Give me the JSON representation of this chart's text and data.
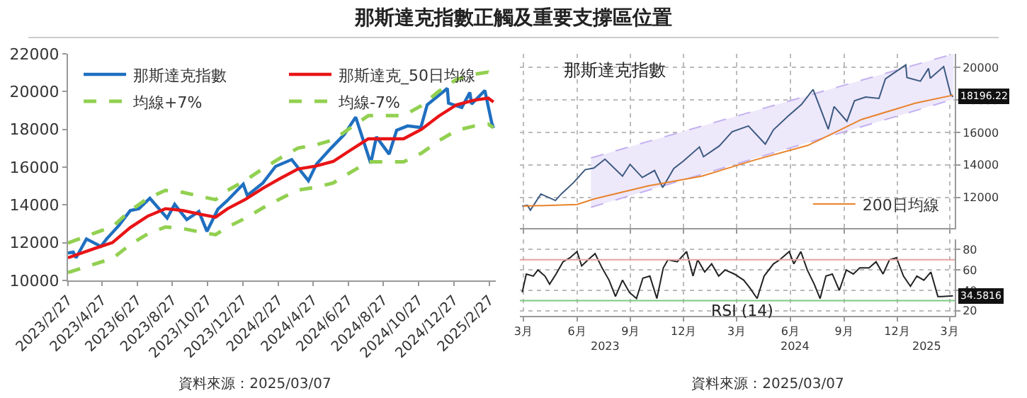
{
  "chart_data": [
    {
      "type": "line",
      "title": "那斯達克指數正觸及重要支撐區位置",
      "xlim": [
        "2023-02-27",
        "2025-03-10"
      ],
      "ylim": [
        10000,
        22000
      ],
      "yticks": [
        10000,
        12000,
        14000,
        16000,
        18000,
        20000,
        22000
      ],
      "xticks": [
        {
          "value": "2023-02-27",
          "label": "2023/2/27"
        },
        {
          "value": "2023-04-27",
          "label": "2023/4/27"
        },
        {
          "value": "2023-06-27",
          "label": "2023/6/27"
        },
        {
          "value": "2023-08-27",
          "label": "2023/8/27"
        },
        {
          "value": "2023-10-27",
          "label": "2023/10/27"
        },
        {
          "value": "2023-12-27",
          "label": "2023/12/27"
        },
        {
          "value": "2024-02-27",
          "label": "2024/2/27"
        },
        {
          "value": "2024-04-27",
          "label": "2024/4/27"
        },
        {
          "value": "2024-06-27",
          "label": "2024/6/27"
        },
        {
          "value": "2024-08-27",
          "label": "2024/8/27"
        },
        {
          "value": "2024-10-27",
          "label": "2024/10/27"
        },
        {
          "value": "2024-12-27",
          "label": "2024/12/27"
        },
        {
          "value": "2025-02-27",
          "label": "2025/2/27"
        }
      ],
      "grid": false,
      "legend": "top",
      "annotations": [
        "資料來源：2025/03/07"
      ],
      "series": [
        {
          "name": "那斯達克指數",
          "color": "#1f6fc0",
          "line_style": "solid",
          "x": [
            "2023-02-27",
            "2023-03-08",
            "2023-03-13",
            "2023-03-31",
            "2023-04-25",
            "2023-05-05",
            "2023-05-26",
            "2023-06-15",
            "2023-06-30",
            "2023-07-19",
            "2023-08-18",
            "2023-08-31",
            "2023-09-21",
            "2023-10-12",
            "2023-10-26",
            "2023-11-14",
            "2023-11-30",
            "2023-12-28",
            "2024-01-04",
            "2024-01-31",
            "2024-02-22",
            "2024-03-21",
            "2024-04-19",
            "2024-05-03",
            "2024-05-28",
            "2024-06-20",
            "2024-07-10",
            "2024-07-24",
            "2024-08-05",
            "2024-08-15",
            "2024-09-06",
            "2024-09-19",
            "2024-10-08",
            "2024-10-31",
            "2024-11-11",
            "2024-12-16",
            "2024-12-18",
            "2025-01-10",
            "2025-01-24",
            "2025-01-27",
            "2025-02-19",
            "2025-03-03",
            "2025-03-06"
          ],
          "values": [
            11450,
            11500,
            11200,
            12200,
            11800,
            12200,
            12900,
            13700,
            13800,
            14350,
            13300,
            14030,
            13220,
            13650,
            12600,
            13770,
            14220,
            15100,
            14500,
            15160,
            16040,
            16400,
            15280,
            16160,
            17000,
            17720,
            18650,
            17340,
            16200,
            17600,
            16690,
            17950,
            18180,
            18100,
            19300,
            20170,
            19390,
            19160,
            19950,
            19340,
            20060,
            18350,
            18070
          ]
        },
        {
          "name": "那斯達克_50日均線",
          "color": "#e81416",
          "line_style": "solid",
          "x": [
            "2023-02-27",
            "2023-04-15",
            "2023-05-15",
            "2023-06-15",
            "2023-07-15",
            "2023-08-15",
            "2023-09-15",
            "2023-10-15",
            "2023-11-10",
            "2023-12-01",
            "2024-01-01",
            "2024-02-01",
            "2024-03-01",
            "2024-04-01",
            "2024-05-01",
            "2024-06-01",
            "2024-07-01",
            "2024-08-01",
            "2024-09-01",
            "2024-10-01",
            "2024-11-01",
            "2024-12-01",
            "2025-01-01",
            "2025-02-01",
            "2025-02-25",
            "2025-03-06"
          ],
          "values": [
            11200,
            11700,
            12000,
            12800,
            13400,
            13800,
            13700,
            13500,
            13350,
            13800,
            14300,
            14900,
            15400,
            15900,
            16050,
            16300,
            16900,
            17500,
            17500,
            17500,
            18000,
            18700,
            19300,
            19550,
            19650,
            19450
          ]
        },
        {
          "name": "均線+7%",
          "color": "#92d050",
          "line_style": "dashed",
          "x": [
            "2023-02-27",
            "2023-04-15",
            "2023-05-15",
            "2023-06-15",
            "2023-07-15",
            "2023-08-15",
            "2023-09-15",
            "2023-10-15",
            "2023-11-10",
            "2023-12-01",
            "2024-01-01",
            "2024-02-01",
            "2024-03-01",
            "2024-04-01",
            "2024-05-01",
            "2024-06-01",
            "2024-07-01",
            "2024-08-01",
            "2024-09-01",
            "2024-10-01",
            "2024-11-01",
            "2024-12-01",
            "2025-01-01",
            "2025-02-01",
            "2025-02-25",
            "2025-03-06"
          ],
          "values": [
            11980,
            12520,
            12840,
            13700,
            14340,
            14770,
            14660,
            14450,
            14280,
            14770,
            15300,
            15940,
            16480,
            17010,
            17170,
            17440,
            18080,
            18730,
            18730,
            18730,
            19260,
            20010,
            20650,
            20920,
            21030,
            20810
          ]
        },
        {
          "name": "均線-7%",
          "color": "#92d050",
          "line_style": "dashed",
          "x": [
            "2023-02-27",
            "2023-04-15",
            "2023-05-15",
            "2023-06-15",
            "2023-07-15",
            "2023-08-15",
            "2023-09-15",
            "2023-10-15",
            "2023-11-10",
            "2023-12-01",
            "2024-01-01",
            "2024-02-01",
            "2024-03-01",
            "2024-04-01",
            "2024-05-01",
            "2024-06-01",
            "2024-07-01",
            "2024-08-01",
            "2024-09-01",
            "2024-10-01",
            "2024-11-01",
            "2024-12-01",
            "2025-01-01",
            "2025-02-01",
            "2025-02-25",
            "2025-03-06"
          ],
          "values": [
            10420,
            10880,
            11160,
            11900,
            12460,
            12830,
            12740,
            12560,
            12420,
            12830,
            13300,
            13860,
            14320,
            14790,
            14930,
            15160,
            15720,
            16280,
            16280,
            16280,
            16740,
            17390,
            17950,
            18180,
            18270,
            18090
          ]
        }
      ]
    },
    {
      "type": "line",
      "title": "那斯達克指數",
      "xlim": [
        "2023-02-23",
        "2025-03-10"
      ],
      "y2lim": [
        10100,
        20850
      ],
      "y2ticks": [
        12000,
        14000,
        16000,
        18000,
        20000
      ],
      "xticks": [
        {
          "value": "2023-03-01",
          "label": null
        },
        {
          "value": "2023-06-01",
          "label": null
        },
        {
          "value": "2023-09-01",
          "label": null
        },
        {
          "value": "2023-12-01",
          "label": null
        },
        {
          "value": "2024-03-01",
          "label": null
        },
        {
          "value": "2024-06-01",
          "label": null
        },
        {
          "value": "2024-09-01",
          "label": null
        },
        {
          "value": "2024-12-01",
          "label": null
        },
        {
          "value": "2025-03-01",
          "label": null
        }
      ],
      "tick_labels": "y",
      "grid": true,
      "legend": "bottom right",
      "series": [
        {
          "color": "#c3b1ef",
          "axis": "y2",
          "line_style": "dashed",
          "x": [
            "2023-06-25",
            "2023-12-01",
            "2024-05-01",
            "2024-10-01",
            "2025-03-08"
          ],
          "values": [
            14430,
            16070,
            17640,
            19220,
            20850
          ]
        },
        {
          "color": "#c3b1ef",
          "axis": "y2",
          "line_style": "dashed",
          "x": [
            "2023-06-25",
            "2023-12-01",
            "2024-05-01",
            "2024-10-01",
            "2025-03-08"
          ],
          "values": [
            11380,
            13080,
            14720,
            16350,
            18050
          ]
        },
        {
          "color": "#eee8fb",
          "axis": "y2",
          "x": [
            "2023-06-25",
            "2023-12-01",
            "2024-05-01",
            "2024-10-01",
            "2025-03-08"
          ],
          "values": [
            null,
            null,
            null,
            null,
            null
          ],
          "lower": [
            11380,
            13080,
            14720,
            16350,
            18050
          ],
          "upper": [
            14430,
            16070,
            17640,
            19220,
            20850
          ]
        },
        {
          "color": "#3d5a80",
          "axis": "y2",
          "line_style": "solid",
          "x": [
            "2023-02-27",
            "2023-03-08",
            "2023-03-13",
            "2023-03-31",
            "2023-04-25",
            "2023-05-05",
            "2023-05-26",
            "2023-06-15",
            "2023-06-30",
            "2023-07-19",
            "2023-08-18",
            "2023-08-31",
            "2023-09-21",
            "2023-10-12",
            "2023-10-26",
            "2023-11-14",
            "2023-11-30",
            "2023-12-28",
            "2024-01-04",
            "2024-01-31",
            "2024-02-22",
            "2024-03-21",
            "2024-04-19",
            "2024-05-03",
            "2024-05-28",
            "2024-06-20",
            "2024-07-10",
            "2024-07-24",
            "2024-08-05",
            "2024-08-15",
            "2024-09-06",
            "2024-09-19",
            "2024-10-08",
            "2024-10-31",
            "2024-11-11",
            "2024-12-16",
            "2024-12-18",
            "2025-01-10",
            "2025-01-24",
            "2025-01-27",
            "2025-02-19",
            "2025-03-03",
            "2025-03-07"
          ],
          "values": [
            11450,
            11500,
            11200,
            12200,
            11800,
            12200,
            12900,
            13700,
            13800,
            14350,
            13300,
            14030,
            13220,
            13650,
            12600,
            13770,
            14220,
            15100,
            14500,
            15160,
            16040,
            16400,
            15280,
            16160,
            17000,
            17720,
            18650,
            17340,
            16200,
            17600,
            16690,
            17950,
            18180,
            18100,
            19300,
            20170,
            19390,
            19160,
            19950,
            19340,
            20060,
            18350,
            18196.22
          ],
          "value_labels": [
            null,
            null,
            null,
            null,
            null,
            null,
            null,
            null,
            null,
            null,
            null,
            null,
            null,
            null,
            null,
            null,
            null,
            null,
            null,
            null,
            null,
            null,
            null,
            null,
            null,
            null,
            null,
            null,
            null,
            null,
            null,
            null,
            null,
            null,
            null,
            null,
            null,
            null,
            null,
            null,
            null,
            null,
            "18196.22"
          ]
        },
        {
          "name": "200日均線",
          "color": "#e8822a",
          "axis": "y2",
          "line_style": "solid",
          "x": [
            "2023-03-01",
            "2023-06-01",
            "2023-07-01",
            "2023-10-01",
            "2024-01-01",
            "2024-04-01",
            "2024-07-01",
            "2024-08-05",
            "2024-10-01",
            "2025-01-01",
            "2025-03-07"
          ],
          "values": [
            11450,
            11550,
            11900,
            12700,
            13300,
            14300,
            15200,
            15800,
            16800,
            17800,
            18300
          ]
        }
      ]
    },
    {
      "type": "line",
      "title": "RSI (14)",
      "xlim": [
        "2023-02-23",
        "2025-03-10"
      ],
      "y2lim": [
        15,
        90
      ],
      "y2ticks": [
        20,
        40,
        60,
        80
      ],
      "xticks": [
        {
          "value": "2023-03-01",
          "label": "3月"
        },
        {
          "value": "2023-06-01",
          "label": "6月"
        },
        {
          "value": "2023-09-01",
          "label": "9月"
        },
        {
          "value": "2023-12-01",
          "label": "12月"
        },
        {
          "value": "2024-03-01",
          "label": "3月"
        },
        {
          "value": "2024-06-01",
          "label": "6月"
        },
        {
          "value": "2024-09-01",
          "label": "9月"
        },
        {
          "value": "2024-12-01",
          "label": "12月"
        },
        {
          "value": "2025-03-01",
          "label": "3月"
        }
      ],
      "x2lim": [
        "2023-02-23",
        "2025-03-10"
      ],
      "x2ticks": [
        {
          "value": "2023-07-20",
          "label": "2023"
        },
        {
          "value": "2024-06-08",
          "label": "2024"
        },
        {
          "value": "2025-01-21",
          "label": "2025"
        }
      ],
      "grid": true,
      "ref_lines": [
        {
          "axis": "y2",
          "value": 70,
          "label": null,
          "color": "#e8a0a0"
        },
        {
          "axis": "y2",
          "value": 30,
          "label": null,
          "color": "#7fc97f"
        }
      ],
      "annotations": [
        "資料來源：2025/03/07"
      ],
      "series": [
        {
          "color": "#222222",
          "axis": "y2",
          "line_style": "solid",
          "x": [
            "2023-02-27",
            "2023-03-06",
            "2023-03-18",
            "2023-03-26",
            "2023-04-07",
            "2023-04-15",
            "2023-04-26",
            "2023-05-08",
            "2023-05-20",
            "2023-06-01",
            "2023-06-09",
            "2023-06-20",
            "2023-07-02",
            "2023-07-14",
            "2023-07-26",
            "2023-08-06",
            "2023-08-18",
            "2023-08-30",
            "2023-09-11",
            "2023-09-22",
            "2023-10-04",
            "2023-10-16",
            "2023-10-27",
            "2023-11-04",
            "2023-11-20",
            "2023-12-06",
            "2023-12-17",
            "2023-12-25",
            "2024-01-06",
            "2024-01-18",
            "2024-01-30",
            "2024-02-10",
            "2024-02-26",
            "2024-03-13",
            "2024-03-24",
            "2024-04-05",
            "2024-04-17",
            "2024-05-03",
            "2024-05-14",
            "2024-05-30",
            "2024-06-07",
            "2024-06-19",
            "2024-06-30",
            "2024-07-12",
            "2024-07-22",
            "2024-08-01",
            "2024-08-12",
            "2024-08-24",
            "2024-09-05",
            "2024-09-17",
            "2024-09-28",
            "2024-10-14",
            "2024-10-26",
            "2024-11-07",
            "2024-11-18",
            "2024-11-30",
            "2024-12-12",
            "2024-12-24",
            "2025-01-04",
            "2025-01-16",
            "2025-01-28",
            "2025-02-09",
            "2025-02-16",
            "2025-03-07"
          ],
          "values": [
            38,
            56,
            54,
            60,
            54,
            46,
            56,
            68,
            72,
            78,
            64,
            70,
            76,
            62,
            50,
            34,
            50,
            38,
            32,
            52,
            54,
            32,
            62,
            70,
            68,
            78,
            54,
            70,
            58,
            66,
            54,
            60,
            56,
            50,
            42,
            32,
            54,
            66,
            70,
            78,
            66,
            78,
            60,
            46,
            32,
            54,
            56,
            40,
            60,
            56,
            62,
            62,
            68,
            56,
            70,
            72,
            54,
            44,
            54,
            50,
            58,
            34,
            34,
            34.5816
          ],
          "value_labels": [
            null,
            null,
            null,
            null,
            null,
            null,
            null,
            null,
            null,
            null,
            null,
            null,
            null,
            null,
            null,
            null,
            null,
            null,
            null,
            null,
            null,
            null,
            null,
            null,
            null,
            null,
            null,
            null,
            null,
            null,
            null,
            null,
            null,
            null,
            null,
            null,
            null,
            null,
            null,
            null,
            null,
            null,
            null,
            null,
            null,
            null,
            null,
            null,
            null,
            null,
            null,
            null,
            null,
            null,
            null,
            null,
            null,
            null,
            null,
            null,
            null,
            null,
            null,
            "34.5816"
          ]
        }
      ]
    }
  ]
}
